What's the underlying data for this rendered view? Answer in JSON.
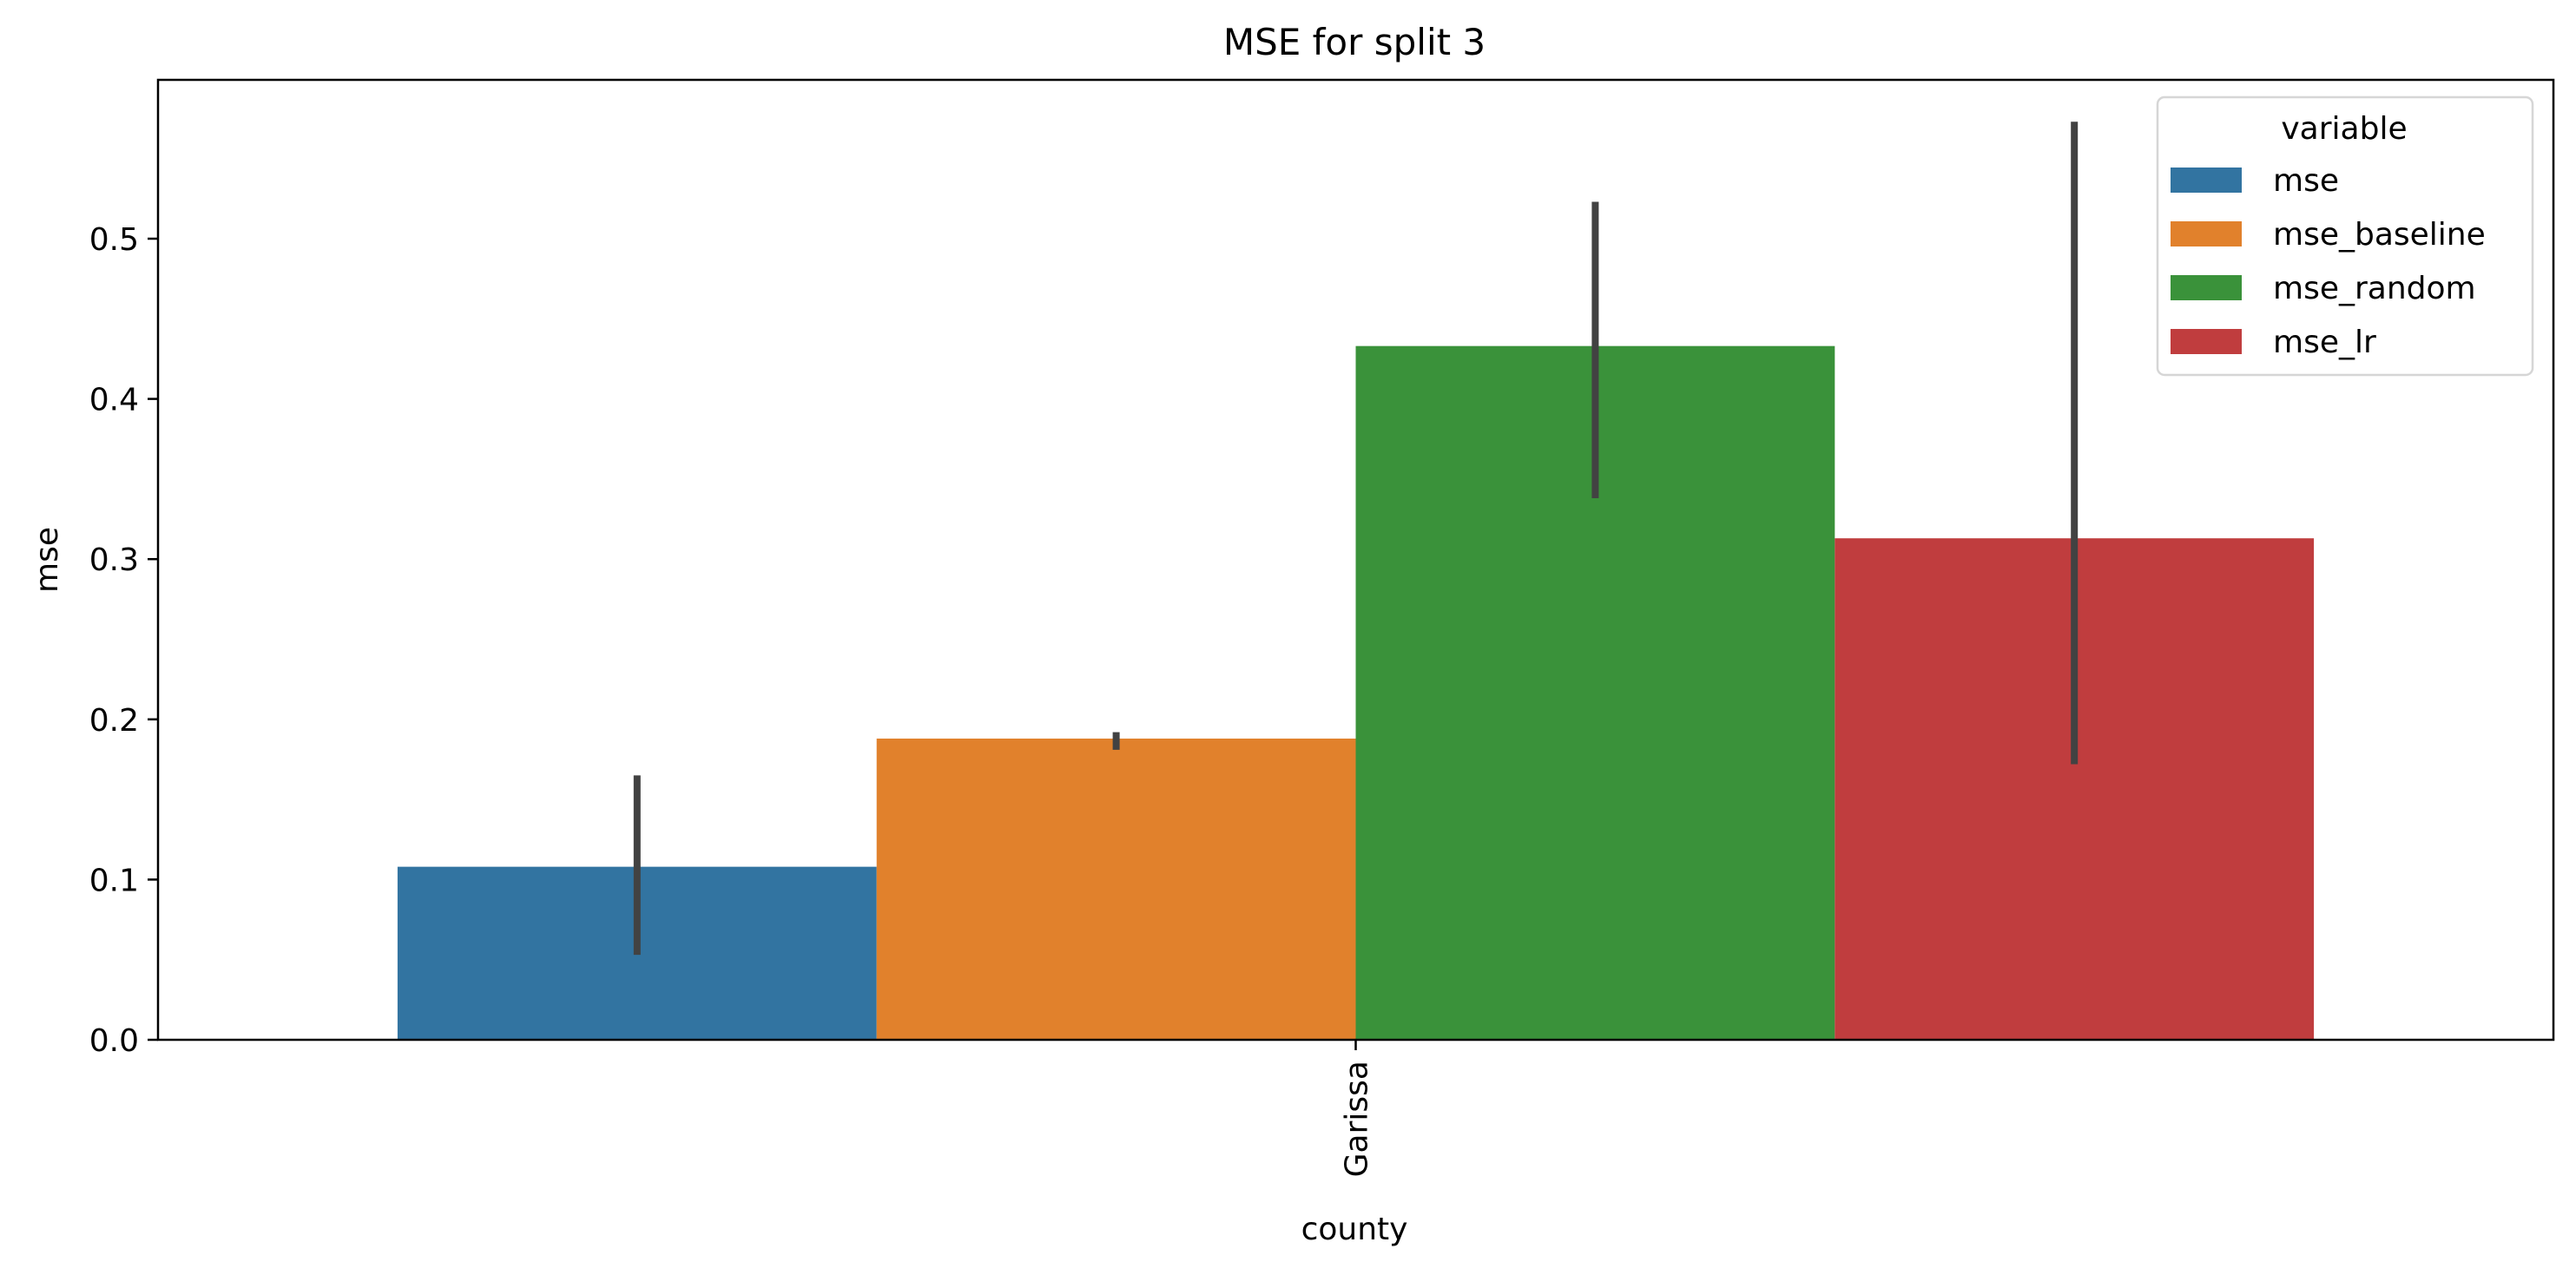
{
  "chart_data": {
    "type": "bar",
    "title": "MSE for split 3",
    "xlabel": "county",
    "ylabel": "mse",
    "categories": [
      "Garissa"
    ],
    "ylim": [
      0,
      0.6
    ],
    "yticks": [
      0.0,
      0.1,
      0.2,
      0.3,
      0.4,
      0.5
    ],
    "ytick_labels": [
      "0.0",
      "0.1",
      "0.2",
      "0.3",
      "0.4",
      "0.5"
    ],
    "grid": false,
    "legend": {
      "title": "variable",
      "placement": "top-right"
    },
    "series": [
      {
        "name": "mse",
        "color": "#3274a1",
        "values": [
          0.108
        ],
        "ci": [
          [
            0.053,
            0.165
          ]
        ]
      },
      {
        "name": "mse_baseline",
        "color": "#e1812c",
        "values": [
          0.188
        ],
        "ci": [
          [
            0.181,
            0.192
          ]
        ]
      },
      {
        "name": "mse_random",
        "color": "#3a923a",
        "values": [
          0.433
        ],
        "ci": [
          [
            0.338,
            0.523
          ]
        ]
      },
      {
        "name": "mse_lr",
        "color": "#c03d3e",
        "values": [
          0.313
        ],
        "ci": [
          [
            0.172,
            0.573
          ]
        ]
      }
    ],
    "errorbar_color": "#424242"
  }
}
